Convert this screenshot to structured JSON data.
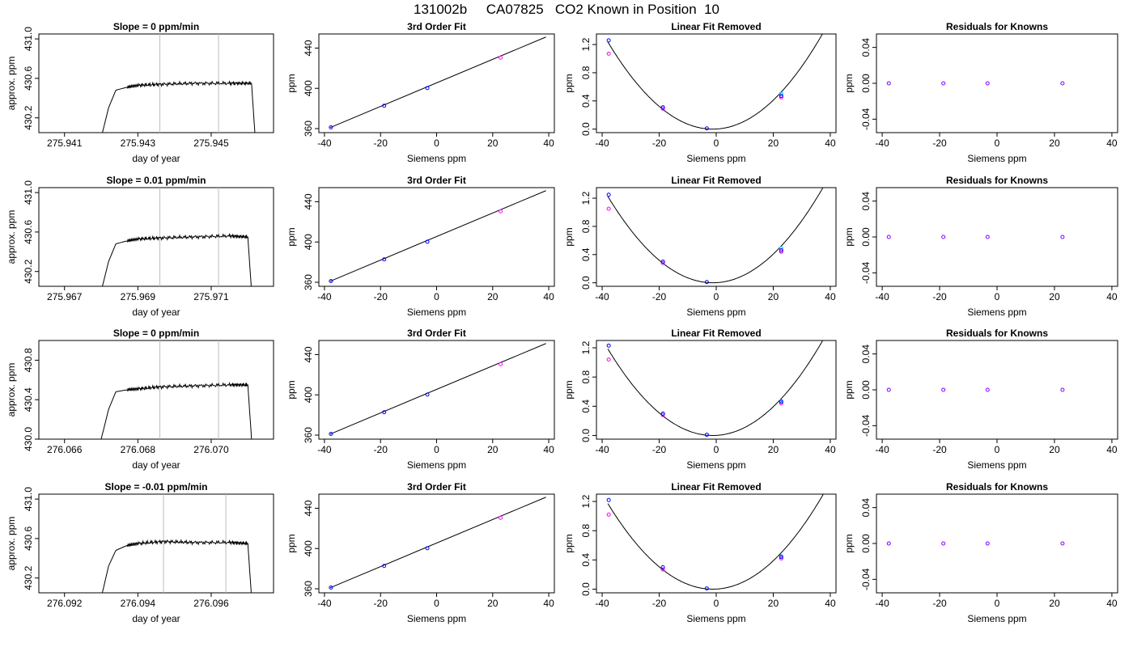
{
  "figure_title": "131002b     CA07825   CO2 Known in Position  10",
  "colors": {
    "curve": "#000000",
    "vline": "#bebebe",
    "blue": "#0000ff",
    "magenta": "#ff00ff",
    "cyan": "#00bfff",
    "purple": "#8000ff"
  },
  "chart_data": [
    {
      "panel": "trace-1",
      "type": "line",
      "title": "Slope =  0  ppm/min",
      "xlabel": "day of year",
      "ylabel": "approx. ppm",
      "xlim": [
        275.9403,
        275.9467
      ],
      "ylim": [
        430.05,
        431.05
      ],
      "xticks": [
        "275.941",
        "275.943",
        "275.945"
      ],
      "yticks": [
        "430.2",
        "430.6",
        "431.0"
      ],
      "vlines": [
        275.9436,
        275.9452
      ],
      "x": [
        275.942,
        275.9422,
        275.9424,
        275.9427,
        275.943,
        275.9436,
        275.9445,
        275.9455,
        275.9461,
        275.9462
      ],
      "y": [
        430.0,
        430.3,
        430.48,
        430.51,
        430.53,
        430.54,
        430.55,
        430.55,
        430.55,
        430.0
      ]
    },
    {
      "panel": "fit-1",
      "type": "line+scatter",
      "title": "3rd Order Fit",
      "xlabel": "Siemens ppm",
      "ylabel": "ppm",
      "xlim": [
        -42,
        42
      ],
      "ylim": [
        356,
        454
      ],
      "xticks": [
        "-40",
        "-20",
        "0",
        "20",
        "40"
      ],
      "yticks": [
        "360",
        "400",
        "440"
      ],
      "line": {
        "x": [
          -38,
          39
        ],
        "y": [
          361,
          451
        ]
      },
      "points": {
        "x": [
          -37.7,
          -18.7,
          -3.3,
          22.8
        ],
        "y": [
          361.2,
          382.7,
          400.3,
          430.5
        ]
      }
    },
    {
      "panel": "linfit-1",
      "type": "line+scatter",
      "title": "Linear Fit Removed",
      "xlabel": "Siemens ppm",
      "ylabel": "ppm",
      "xlim": [
        -42,
        42
      ],
      "ylim": [
        -0.05,
        1.35
      ],
      "xticks": [
        "-40",
        "-20",
        "0",
        "20",
        "40"
      ],
      "yticks": [
        "0.0",
        "0.4",
        "0.8",
        "1.2"
      ],
      "curve": {
        "x0": -1.2,
        "a": 0.000913,
        "c": 0.0,
        "xrange": [
          -38,
          39
        ]
      },
      "points_blue": {
        "x": [
          -37.7,
          -18.7,
          -3.3,
          22.8
        ],
        "y": [
          1.26,
          0.31,
          0.01,
          0.47
        ]
      },
      "points_magenta": {
        "x": [
          -37.7,
          -18.7,
          22.8
        ],
        "y": [
          1.07,
          0.29,
          0.45
        ]
      },
      "points_cyan": {
        "x": [
          22.8
        ],
        "y": [
          0.5
        ]
      }
    },
    {
      "panel": "resid-1",
      "type": "scatter",
      "title": "Residuals for Knowns",
      "xlabel": "Siemens ppm",
      "ylabel": "ppm",
      "xlim": [
        -42,
        42
      ],
      "ylim": [
        -0.055,
        0.055
      ],
      "xticks": [
        "-40",
        "-20",
        "0",
        "20",
        "40"
      ],
      "yticks": [
        "-0.04",
        "0.00",
        "0.04"
      ],
      "points": {
        "x": [
          -37.7,
          -18.7,
          -3.3,
          22.8
        ],
        "y": [
          0,
          0,
          0,
          0
        ]
      }
    },
    {
      "panel": "trace-2",
      "type": "line",
      "title": "Slope =  0.01  ppm/min",
      "xlabel": "day of year",
      "ylabel": "approx. ppm",
      "xlim": [
        275.9663,
        275.9727
      ],
      "ylim": [
        430.05,
        431.05
      ],
      "xticks": [
        "275.967",
        "275.969",
        "275.971"
      ],
      "yticks": [
        "430.2",
        "430.6",
        "431.0"
      ],
      "vlines": [
        275.9696,
        275.9712
      ],
      "x": [
        275.968,
        275.9682,
        275.9684,
        275.9687,
        275.969,
        275.9696,
        275.9705,
        275.9715,
        275.972,
        275.9721
      ],
      "y": [
        430.0,
        430.3,
        430.48,
        430.51,
        430.53,
        430.54,
        430.55,
        430.56,
        430.55,
        430.0
      ]
    },
    {
      "panel": "fit-2",
      "type": "line+scatter",
      "title": "3rd Order Fit",
      "xlabel": "Siemens ppm",
      "ylabel": "ppm",
      "xlim": [
        -42,
        42
      ],
      "ylim": [
        356,
        454
      ],
      "xticks": [
        "-40",
        "-20",
        "0",
        "20",
        "40"
      ],
      "yticks": [
        "360",
        "400",
        "440"
      ],
      "line": {
        "x": [
          -38,
          39
        ],
        "y": [
          361,
          451
        ]
      },
      "points": {
        "x": [
          -37.7,
          -18.7,
          -3.3,
          22.8
        ],
        "y": [
          361.2,
          382.7,
          400.3,
          430.5
        ]
      }
    },
    {
      "panel": "linfit-2",
      "type": "line+scatter",
      "title": "Linear Fit Removed",
      "xlabel": "Siemens ppm",
      "ylabel": "ppm",
      "xlim": [
        -42,
        42
      ],
      "ylim": [
        -0.05,
        1.35
      ],
      "xticks": [
        "-40",
        "-20",
        "0",
        "20",
        "40"
      ],
      "yticks": [
        "0.0",
        "0.4",
        "0.8",
        "1.2"
      ],
      "curve": {
        "x0": -1.2,
        "a": 0.000905,
        "c": 0.0,
        "xrange": [
          -38,
          39
        ]
      },
      "points_blue": {
        "x": [
          -37.7,
          -18.7,
          -3.3,
          22.8
        ],
        "y": [
          1.25,
          0.3,
          0.01,
          0.46
        ]
      },
      "points_magenta": {
        "x": [
          -37.7,
          -18.7,
          22.8
        ],
        "y": [
          1.05,
          0.28,
          0.44
        ]
      },
      "points_cyan": {
        "x": [
          22.8
        ],
        "y": [
          0.49
        ]
      }
    },
    {
      "panel": "resid-2",
      "type": "scatter",
      "title": "Residuals for Knowns",
      "xlabel": "Siemens ppm",
      "ylabel": "ppm",
      "xlim": [
        -42,
        42
      ],
      "ylim": [
        -0.055,
        0.055
      ],
      "xticks": [
        "-40",
        "-20",
        "0",
        "20",
        "40"
      ],
      "yticks": [
        "-0.04",
        "0.00",
        "0.04"
      ],
      "points": {
        "x": [
          -37.7,
          -18.7,
          -3.3,
          22.8
        ],
        "y": [
          0,
          0,
          0,
          0
        ]
      }
    },
    {
      "panel": "trace-3",
      "type": "line",
      "title": "Slope =  0  ppm/min",
      "xlabel": "day of year",
      "ylabel": "approx. ppm",
      "xlim": [
        276.0653,
        276.0717
      ],
      "ylim": [
        430.0,
        431.0
      ],
      "xticks": [
        "276.066",
        "276.068",
        "276.070"
      ],
      "yticks": [
        "430.0",
        "430.4",
        "430.8"
      ],
      "vlines": [
        276.0686,
        276.0702
      ],
      "x": [
        276.067,
        276.0672,
        276.0674,
        276.0677,
        276.068,
        276.0686,
        276.0695,
        276.0705,
        276.071,
        276.0711
      ],
      "y": [
        430.0,
        430.3,
        430.48,
        430.5,
        430.51,
        430.53,
        430.54,
        430.55,
        430.55,
        430.0
      ]
    },
    {
      "panel": "fit-3",
      "type": "line+scatter",
      "title": "3rd Order Fit",
      "xlabel": "Siemens ppm",
      "ylabel": "ppm",
      "xlim": [
        -42,
        42
      ],
      "ylim": [
        356,
        454
      ],
      "xticks": [
        "-40",
        "-20",
        "0",
        "20",
        "40"
      ],
      "yticks": [
        "360",
        "400",
        "440"
      ],
      "line": {
        "x": [
          -38,
          39
        ],
        "y": [
          361,
          451
        ]
      },
      "points": {
        "x": [
          -37.7,
          -18.7,
          -3.3,
          22.8
        ],
        "y": [
          361.2,
          382.7,
          400.3,
          430.5
        ]
      }
    },
    {
      "panel": "linfit-3",
      "type": "line+scatter",
      "title": "Linear Fit Removed",
      "xlabel": "Siemens ppm",
      "ylabel": "ppm",
      "xlim": [
        -42,
        42
      ],
      "ylim": [
        -0.05,
        1.3
      ],
      "xticks": [
        "-40",
        "-20",
        "0",
        "20",
        "40"
      ],
      "yticks": [
        "0.0",
        "0.4",
        "0.8",
        "1.2"
      ],
      "curve": {
        "x0": -1.2,
        "a": 0.000875,
        "c": 0.0,
        "xrange": [
          -38,
          39
        ]
      },
      "points_blue": {
        "x": [
          -37.7,
          -18.7,
          -3.3,
          22.8
        ],
        "y": [
          1.23,
          0.3,
          0.01,
          0.46
        ]
      },
      "points_magenta": {
        "x": [
          -37.7,
          -18.7,
          22.8
        ],
        "y": [
          1.04,
          0.28,
          0.44
        ]
      },
      "points_cyan": {
        "x": [
          22.8
        ],
        "y": [
          0.47
        ]
      }
    },
    {
      "panel": "resid-3",
      "type": "scatter",
      "title": "Residuals for Knowns",
      "xlabel": "Siemens ppm",
      "ylabel": "ppm",
      "xlim": [
        -42,
        42
      ],
      "ylim": [
        -0.055,
        0.055
      ],
      "xticks": [
        "-40",
        "-20",
        "0",
        "20",
        "40"
      ],
      "yticks": [
        "-0.04",
        "0.00",
        "0.04"
      ],
      "points": {
        "x": [
          -37.7,
          -18.7,
          -3.3,
          22.8
        ],
        "y": [
          0,
          0,
          0,
          0
        ]
      }
    },
    {
      "panel": "trace-4",
      "type": "line",
      "title": "Slope =  -0.01  ppm/min",
      "xlabel": "day of year",
      "ylabel": "approx. ppm",
      "xlim": [
        276.0913,
        276.0977
      ],
      "ylim": [
        430.05,
        431.05
      ],
      "xticks": [
        "276.092",
        "276.094",
        "276.096"
      ],
      "yticks": [
        "430.2",
        "430.6",
        "431.0"
      ],
      "vlines": [
        276.0947,
        276.0964
      ],
      "x": [
        276.093,
        276.0932,
        276.0934,
        276.0937,
        276.094,
        276.0947,
        276.0955,
        276.0965,
        276.097,
        276.0971
      ],
      "y": [
        430.0,
        430.32,
        430.48,
        430.53,
        430.55,
        430.57,
        430.56,
        430.56,
        430.55,
        430.0
      ]
    },
    {
      "panel": "fit-4",
      "type": "line+scatter",
      "title": "3rd Order Fit",
      "xlabel": "Siemens ppm",
      "ylabel": "ppm",
      "xlim": [
        -42,
        42
      ],
      "ylim": [
        356,
        454
      ],
      "xticks": [
        "-40",
        "-20",
        "0",
        "20",
        "40"
      ],
      "yticks": [
        "360",
        "400",
        "440"
      ],
      "line": {
        "x": [
          -38,
          39
        ],
        "y": [
          361,
          451
        ]
      },
      "points": {
        "x": [
          -37.7,
          -18.7,
          -3.3,
          22.8
        ],
        "y": [
          361.2,
          382.7,
          400.3,
          430.5
        ]
      }
    },
    {
      "panel": "linfit-4",
      "type": "line+scatter",
      "title": "Linear Fit Removed",
      "xlabel": "Siemens ppm",
      "ylabel": "ppm",
      "xlim": [
        -42,
        42
      ],
      "ylim": [
        -0.05,
        1.3
      ],
      "xticks": [
        "-40",
        "-20",
        "0",
        "20",
        "40"
      ],
      "yticks": [
        "0.0",
        "0.4",
        "0.8",
        "1.2"
      ],
      "curve": {
        "x0": -1.2,
        "a": 0.000865,
        "c": 0.0,
        "xrange": [
          -38,
          39
        ]
      },
      "points_blue": {
        "x": [
          -37.7,
          -18.7,
          -3.3,
          22.8
        ],
        "y": [
          1.22,
          0.3,
          0.01,
          0.44
        ]
      },
      "points_magenta": {
        "x": [
          -37.7,
          -18.7,
          22.8
        ],
        "y": [
          1.02,
          0.27,
          0.42
        ]
      },
      "points_cyan": {
        "x": [
          22.8
        ],
        "y": [
          0.45
        ]
      }
    },
    {
      "panel": "resid-4",
      "type": "scatter",
      "title": "Residuals for Knowns",
      "xlabel": "Siemens ppm",
      "ylabel": "ppm",
      "xlim": [
        -42,
        42
      ],
      "ylim": [
        -0.055,
        0.055
      ],
      "xticks": [
        "-40",
        "-20",
        "0",
        "20",
        "40"
      ],
      "yticks": [
        "-0.04",
        "0.00",
        "0.04"
      ],
      "points": {
        "x": [
          -37.7,
          -18.7,
          -3.3,
          22.8
        ],
        "y": [
          0,
          0,
          0,
          0
        ]
      }
    }
  ]
}
